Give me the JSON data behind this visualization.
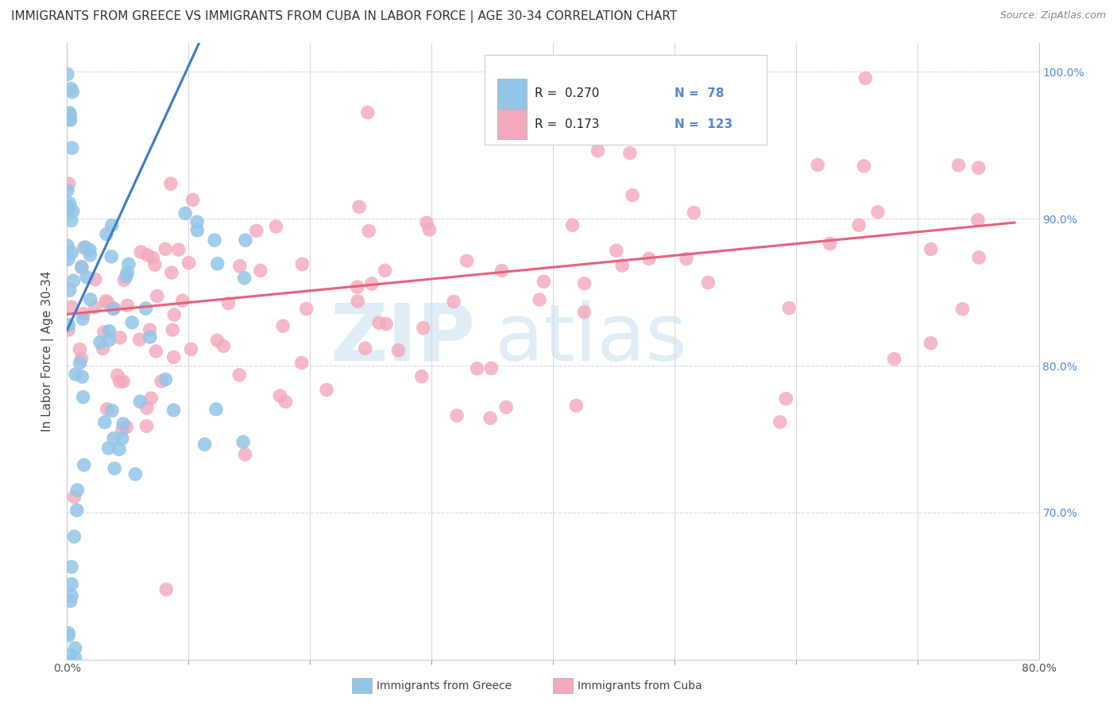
{
  "title": "IMMIGRANTS FROM GREECE VS IMMIGRANTS FROM CUBA IN LABOR FORCE | AGE 30-34 CORRELATION CHART",
  "source": "Source: ZipAtlas.com",
  "ylabel": "In Labor Force | Age 30-34",
  "y_label_right_top": "100.0%",
  "y_label_right_mid1": "90.0%",
  "y_label_right_mid2": "80.0%",
  "y_label_right_bot": "70.0%",
  "legend_label1": "Immigrants from Greece",
  "legend_label2": "Immigrants from Cuba",
  "R_greece": 0.27,
  "N_greece": 78,
  "R_cuba": 0.173,
  "N_cuba": 123,
  "greece_color": "#92c5e8",
  "cuba_color": "#f4a8bc",
  "greece_line_color": "#3a7dc9",
  "cuba_line_color": "#e8607a",
  "background_color": "#ffffff",
  "xmin": 0.0,
  "xmax": 0.8,
  "ymin": 0.6,
  "ymax": 1.02,
  "watermark_color": "#c8ddf0",
  "watermark_alpha": 0.55,
  "grid_color": "#d8d8e8",
  "right_tick_color": "#5588cc"
}
